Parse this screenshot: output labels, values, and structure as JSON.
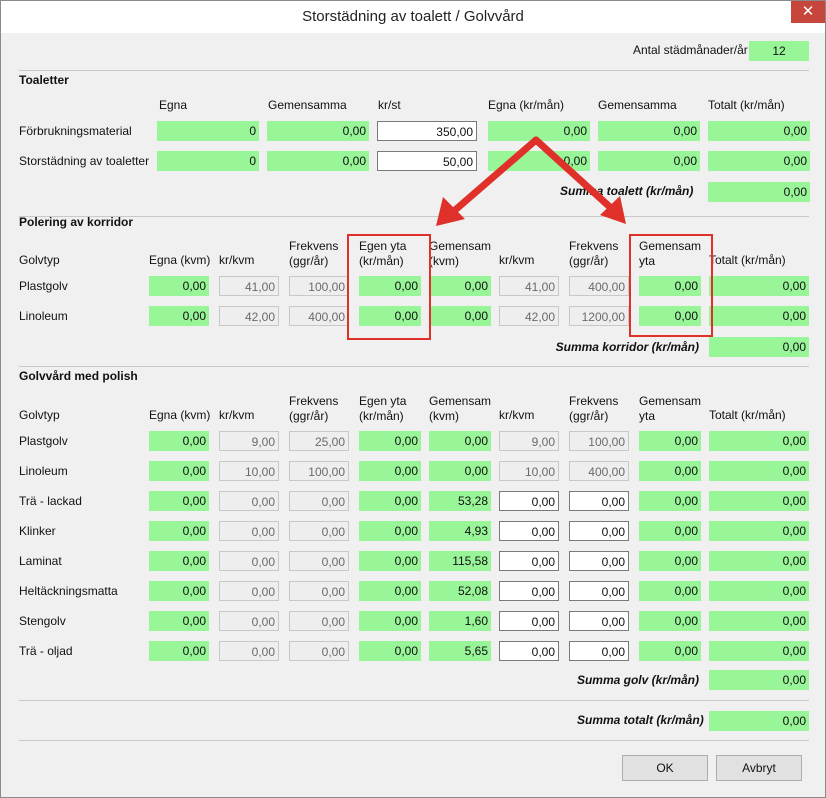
{
  "window": {
    "title": "Storstädning av toalett / Golvvård",
    "close": "✕"
  },
  "months": {
    "label": "Antal städmånader/år",
    "value": "12"
  },
  "toaletter": {
    "title": "Toaletter",
    "headers": [
      "Egna",
      "Gemensamma",
      "kr/st",
      "Egna (kr/mån)",
      "Gemensamma",
      "Totalt (kr/mån)"
    ],
    "rows": [
      {
        "label": "Förbrukningsmaterial",
        "egna": "0",
        "gemensamma": "0,00",
        "krst": "350,00",
        "egna_man": "0,00",
        "gem_man": "0,00",
        "totalt": "0,00"
      },
      {
        "label": "Storstädning av toaletter",
        "egna": "0",
        "gemensamma": "0,00",
        "krst": "50,00",
        "egna_man": "0,00",
        "gem_man": "0,00",
        "totalt": "0,00"
      }
    ],
    "sum_label": "Summa toalett (kr/mån)",
    "sum_value": "0,00"
  },
  "korridor": {
    "title": "Polering av korridor",
    "headers": {
      "golvtyp": "Golvtyp",
      "egna": "Egna (kvm)",
      "krkvm": "kr/kvm",
      "frekvens": "Frekvens\n(ggr/år)",
      "egen_yta": "Egen yta\n(kr/mån)",
      "gem": "Gemensam\n(kvm)",
      "krkvm2": "kr/kvm",
      "frekvens2": "Frekvens\n(ggr/år)",
      "gem_yta": "Gemensam\nyta",
      "totalt": "Totalt (kr/mån)"
    },
    "rows": [
      {
        "label": "Plastgolv",
        "egna": "0,00",
        "krkvm": "41,00",
        "frek": "100,00",
        "egen_yta": "0,00",
        "gem": "0,00",
        "krkvm2": "41,00",
        "frek2": "400,00",
        "gem_yta": "0,00",
        "totalt": "0,00"
      },
      {
        "label": "Linoleum",
        "egna": "0,00",
        "krkvm": "42,00",
        "frek": "400,00",
        "egen_yta": "0,00",
        "gem": "0,00",
        "krkvm2": "42,00",
        "frek2": "1200,00",
        "gem_yta": "0,00",
        "totalt": "0,00"
      }
    ],
    "sum_label": "Summa korridor (kr/mån)",
    "sum_value": "0,00"
  },
  "polish": {
    "title": "Golvvård med polish",
    "headers": {
      "golvtyp": "Golvtyp",
      "egna": "Egna (kvm)",
      "krkvm": "kr/kvm",
      "frekvens": "Frekvens\n(ggr/år)",
      "egen_yta": "Egen yta\n(kr/mån)",
      "gem": "Gemensam\n(kvm)",
      "krkvm2": "kr/kvm",
      "frekvens2": "Frekvens\n(ggr/år)",
      "gem_yta": "Gemensam\nyta",
      "totalt": "Totalt (kr/mån)"
    },
    "rows": [
      {
        "label": "Plastgolv",
        "egna": "0,00",
        "krkvm": "9,00",
        "frek": "25,00",
        "egen_yta": "0,00",
        "gem": "0,00",
        "krkvm2": "9,00",
        "frek2": "100,00",
        "gem_yta": "0,00",
        "totalt": "0,00",
        "editable": false
      },
      {
        "label": "Linoleum",
        "egna": "0,00",
        "krkvm": "10,00",
        "frek": "100,00",
        "egen_yta": "0,00",
        "gem": "0,00",
        "krkvm2": "10,00",
        "frek2": "400,00",
        "gem_yta": "0,00",
        "totalt": "0,00",
        "editable": false
      },
      {
        "label": "Trä - lackad",
        "egna": "0,00",
        "krkvm": "0,00",
        "frek": "0,00",
        "egen_yta": "0,00",
        "gem": "53,28",
        "krkvm2": "0,00",
        "frek2": "0,00",
        "gem_yta": "0,00",
        "totalt": "0,00",
        "editable": true
      },
      {
        "label": "Klinker",
        "egna": "0,00",
        "krkvm": "0,00",
        "frek": "0,00",
        "egen_yta": "0,00",
        "gem": "4,93",
        "krkvm2": "0,00",
        "frek2": "0,00",
        "gem_yta": "0,00",
        "totalt": "0,00",
        "editable": true
      },
      {
        "label": "Laminat",
        "egna": "0,00",
        "krkvm": "0,00",
        "frek": "0,00",
        "egen_yta": "0,00",
        "gem": "115,58",
        "krkvm2": "0,00",
        "frek2": "0,00",
        "gem_yta": "0,00",
        "totalt": "0,00",
        "editable": true
      },
      {
        "label": "Heltäckningsmatta",
        "egna": "0,00",
        "krkvm": "0,00",
        "frek": "0,00",
        "egen_yta": "0,00",
        "gem": "52,08",
        "krkvm2": "0,00",
        "frek2": "0,00",
        "gem_yta": "0,00",
        "totalt": "0,00",
        "editable": true
      },
      {
        "label": "Stengolv",
        "egna": "0,00",
        "krkvm": "0,00",
        "frek": "0,00",
        "egen_yta": "0,00",
        "gem": "1,60",
        "krkvm2": "0,00",
        "frek2": "0,00",
        "gem_yta": "0,00",
        "totalt": "0,00",
        "editable": true
      },
      {
        "label": "Trä - oljad",
        "egna": "0,00",
        "krkvm": "0,00",
        "frek": "0,00",
        "egen_yta": "0,00",
        "gem": "5,65",
        "krkvm2": "0,00",
        "frek2": "0,00",
        "gem_yta": "0,00",
        "totalt": "0,00",
        "editable": true
      }
    ],
    "sum_label": "Summa golv (kr/mån)",
    "sum_value": "0,00"
  },
  "total": {
    "label": "Summa totalt (kr/mån)",
    "value": "0,00"
  },
  "buttons": {
    "ok": "OK",
    "cancel": "Avbryt"
  },
  "colors": {
    "field_green": "#98f598",
    "highlight_red": "#e0302a"
  }
}
